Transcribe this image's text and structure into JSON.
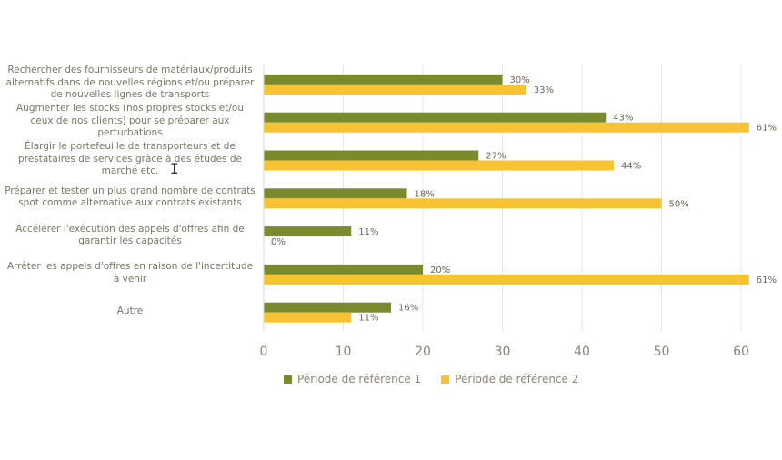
{
  "chart_data": {
    "type": "bar",
    "orientation": "horizontal",
    "categories": [
      "Rechercher des fournisseurs de matériaux/produits alternatifs dans de nouvelles régions et/ou préparer de nouvelles lignes de transports",
      "Augmenter les stocks (nos propres stocks et/ou ceux de nos clients) pour se préparer aux perturbations",
      "Élargir le portefeuille de transporteurs et de prestataires de services grâce à des études de marché etc.",
      "Préparer et tester un plus grand nombre de contrats spot comme alternative aux contrats existants",
      "Accélérer l'exécution des appels d'offres afin de garantir les capacités",
      "Arrêter les appels d'offres en raison de l'incertitude à venir",
      "Autre"
    ],
    "series": [
      {
        "name": "Période de référence 1",
        "values": [
          30,
          43,
          27,
          18,
          11,
          20,
          16
        ],
        "color": "#7a8b2e"
      },
      {
        "name": "Période de référence 2",
        "values": [
          33,
          61,
          44,
          50,
          0,
          61,
          11
        ],
        "color": "#f8c332"
      }
    ],
    "data_labels": [
      [
        "30%",
        "43%",
        "27%",
        "18%",
        "11%",
        "20%",
        "16%"
      ],
      [
        "33%",
        "61%",
        "44%",
        "50%",
        "0%",
        "61%",
        "11%"
      ]
    ],
    "x_ticks": [
      "0",
      "10",
      "20",
      "30",
      "40",
      "50",
      "60"
    ],
    "xlim": [
      0,
      61.5
    ],
    "grid": true,
    "legend_position": "bottom-left"
  }
}
